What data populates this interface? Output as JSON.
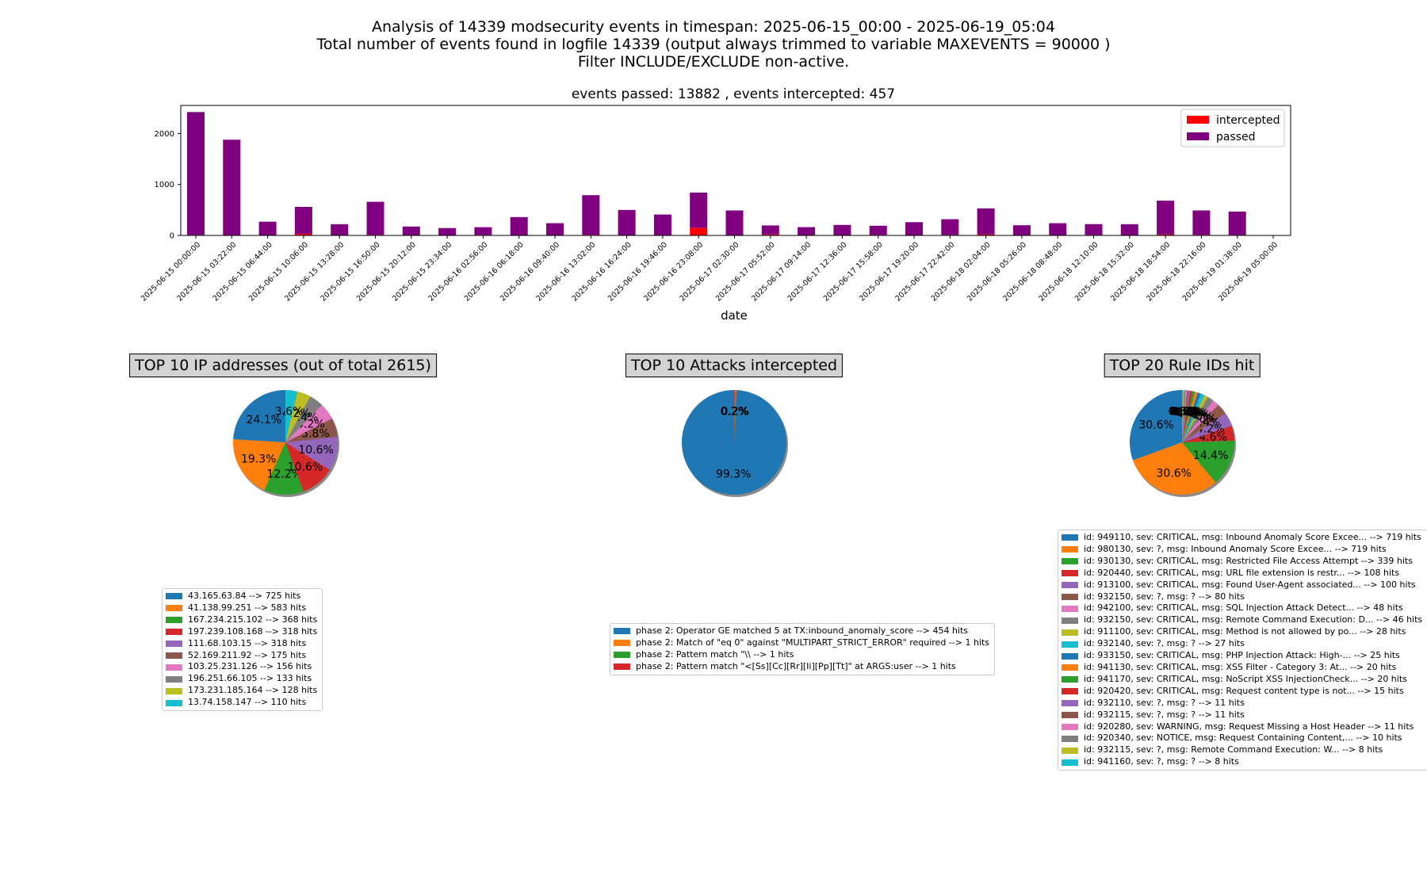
{
  "header": {
    "line1": "Analysis of 14339 modsecurity events in timespan: 2025-06-15_00:00 - 2025-06-19_05:04",
    "line2": "Total number of events found in logfile 14339 (output always trimmed to variable MAXEVENTS = 90000 )",
    "line3": "Filter INCLUDE/EXCLUDE non-active.",
    "line4": "events passed: 13882 , events intercepted: 457"
  },
  "chart_data": [
    {
      "type": "bar",
      "stacked": true,
      "title": "events passed: 13882 , events intercepted: 457",
      "xlabel": "date",
      "ylabel": "",
      "ylim": [
        0,
        2550
      ],
      "yticks": [
        0,
        1000,
        2000
      ],
      "legend_position": "top-right",
      "categories": [
        "2025-06-15 00:00:00",
        "2025-06-15 03:22:00",
        "2025-06-15 06:44:00",
        "2025-06-15 10:06:00",
        "2025-06-15 13:28:00",
        "2025-06-15 16:50:00",
        "2025-06-15 20:12:00",
        "2025-06-15 23:34:00",
        "2025-06-16 02:56:00",
        "2025-06-16 06:18:00",
        "2025-06-16 09:40:00",
        "2025-06-16 13:02:00",
        "2025-06-16 16:24:00",
        "2025-06-16 19:46:00",
        "2025-06-16 23:08:00",
        "2025-06-17 02:30:00",
        "2025-06-17 05:52:00",
        "2025-06-17 09:14:00",
        "2025-06-17 12:36:00",
        "2025-06-17 15:58:00",
        "2025-06-17 19:20:00",
        "2025-06-17 22:42:00",
        "2025-06-18 02:04:00",
        "2025-06-18 05:26:00",
        "2025-06-18 08:48:00",
        "2025-06-18 12:10:00",
        "2025-06-18 15:32:00",
        "2025-06-18 18:54:00",
        "2025-06-18 22:16:00",
        "2025-06-19 01:38:00",
        "2025-06-19 05:00:00"
      ],
      "series": [
        {
          "name": "intercepted",
          "color": "#ff0000",
          "values": [
            10,
            8,
            6,
            30,
            8,
            12,
            8,
            6,
            10,
            8,
            8,
            12,
            8,
            8,
            150,
            8,
            20,
            8,
            8,
            10,
            8,
            10,
            20,
            8,
            8,
            10,
            8,
            20,
            12,
            10,
            0
          ]
        },
        {
          "name": "passed",
          "color": "#800080",
          "values": [
            2410,
            1870,
            264,
            530,
            212,
            648,
            167,
            139,
            152,
            352,
            232,
            778,
            492,
            402,
            690,
            482,
            176,
            155,
            198,
            180,
            252,
            308,
            510,
            192,
            232,
            212,
            212,
            662,
            478,
            458,
            0
          ]
        }
      ]
    },
    {
      "type": "pie",
      "title": "TOP 10 IP addresses (out of total 2615)",
      "labels": [
        "43.165.63.84 --> 725 hits",
        "41.138.99.251 --> 583 hits",
        "167.234.215.102 --> 368 hits",
        "197.239.108.168 --> 318 hits",
        "111.68.103.15 --> 318 hits",
        "52.169.211.92 --> 175 hits",
        "103.25.231.126 --> 156 hits",
        "196.251.66.105 --> 133 hits",
        "173.231.185.164 --> 128 hits",
        "13.74.158.147 --> 110 hits"
      ],
      "values": [
        725,
        583,
        368,
        318,
        318,
        175,
        156,
        133,
        128,
        110
      ],
      "pct_labels": [
        "24.1%",
        "19.3%",
        "12.2%",
        "10.6%",
        "10.6%",
        "5.8%",
        "5.2%",
        "4.4%",
        "4.2%",
        "3.6%"
      ]
    },
    {
      "type": "pie",
      "title": "TOP 10 Attacks intercepted",
      "labels": [
        "phase 2: Operator GE matched 5 at TX:inbound_anomaly_score --> 454 hits",
        "phase 2: Match of \"eq 0\" against \"MULTIPART_STRICT_ERROR\" required --> 1 hits",
        "phase 2: Pattern match \"\\\\ --> 1 hits",
        "phase 2: Pattern match \"<[Ss][Cc][Rr][Ii][Pp][Tt]\" at ARGS:user --> 1 hits"
      ],
      "values": [
        454,
        1,
        1,
        1
      ],
      "pct_labels": [
        "99.3%",
        "0.2%",
        "0.2%",
        "0.2%"
      ]
    },
    {
      "type": "pie",
      "title": "TOP 20 Rule IDs hit",
      "labels": [
        "id: 949110, sev: CRITICAL, msg: Inbound Anomaly Score Excee... --> 719 hits",
        "id: 980130, sev: ?, msg: Inbound Anomaly Score Excee... --> 719 hits",
        "id: 930130, sev: CRITICAL, msg: Restricted File Access Attempt --> 339 hits",
        "id: 920440, sev: CRITICAL, msg: URL file extension is restr... --> 108 hits",
        "id: 913100, sev: CRITICAL, msg: Found User-Agent associated... --> 100 hits",
        "id: 932150, sev: ?, msg: ? --> 80 hits",
        "id: 942100, sev: CRITICAL, msg: SQL Injection Attack Detect... --> 48 hits",
        "id: 932150, sev: CRITICAL, msg: Remote Command Execution: D... --> 46 hits",
        "id: 911100, sev: CRITICAL, msg: Method is not allowed by po... --> 28 hits",
        "id: 932140, sev: ?, msg: ? --> 27 hits",
        "id: 933150, sev: CRITICAL, msg: PHP Injection Attack: High-... --> 25 hits",
        "id: 941130, sev: CRITICAL, msg: XSS Filter - Category 3: At... --> 20 hits",
        "id: 941170, sev: CRITICAL, msg: NoScript XSS InjectionCheck... --> 20 hits",
        "id: 920420, sev: CRITICAL, msg: Request content type is not... --> 15 hits",
        "id: 932110, sev: ?, msg: ? --> 11 hits",
        "id: 932115, sev: ?, msg: ? --> 11 hits",
        "id: 920280, sev: WARNING, msg: Request Missing a Host Header --> 11 hits",
        "id: 920340, sev: NOTICE, msg: Request Containing Content,... --> 10 hits",
        "id: 932115, sev: ?, msg: Remote Command Execution: W... --> 8 hits",
        "id: 941160, sev: ?, msg: ? --> 8 hits"
      ],
      "values": [
        719,
        719,
        339,
        108,
        100,
        80,
        48,
        46,
        28,
        27,
        25,
        20,
        20,
        15,
        11,
        11,
        11,
        10,
        8,
        8
      ],
      "pct_labels": [
        "30.6%",
        "30.6%",
        "14.4%",
        "4.6%",
        "4.2%",
        "3.4%",
        "2.0%",
        "2.0%",
        "1.2%",
        "1.1%",
        "1.1%",
        "0.9%",
        "0.9%",
        "0.6%",
        "0.5%",
        "0.5%",
        "0.5%",
        "0.4%",
        "0.3%",
        "0.3%"
      ]
    }
  ],
  "palette": [
    "#1f77b4",
    "#ff7f0e",
    "#2ca02c",
    "#d62728",
    "#9467bd",
    "#8c564b",
    "#e377c2",
    "#7f7f7f",
    "#bcbd22",
    "#17becf"
  ]
}
